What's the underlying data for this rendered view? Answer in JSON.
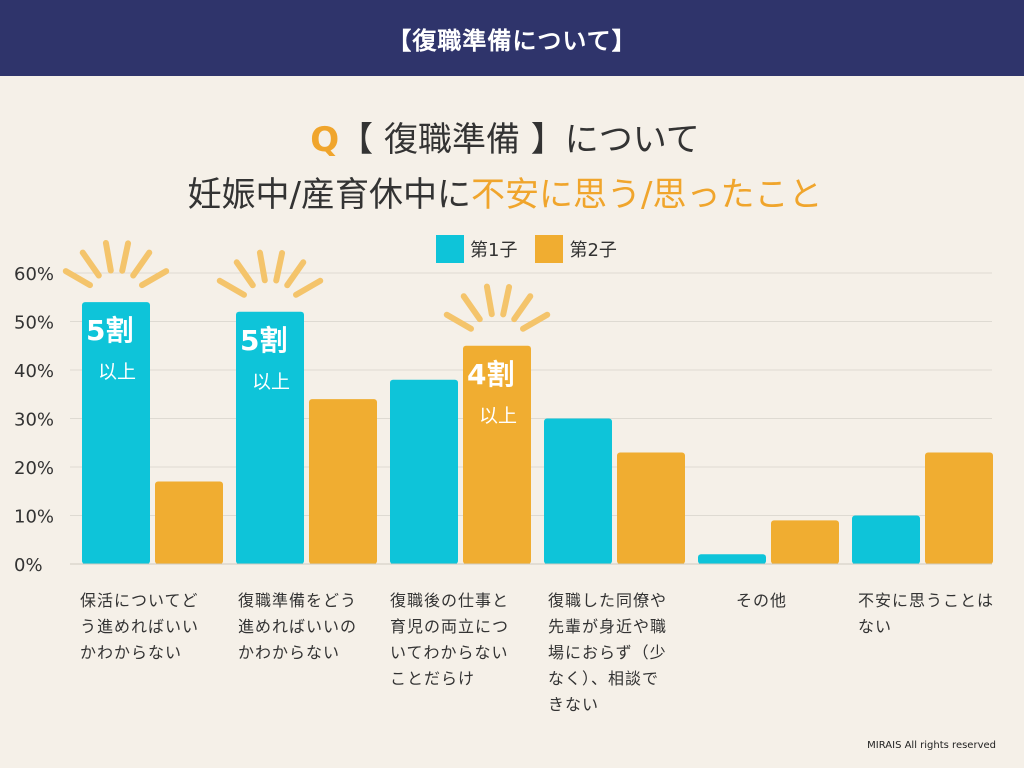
{
  "header": {
    "title": "【復職準備について】"
  },
  "question": {
    "mark": "Q",
    "line1": "【 復職準備 】について",
    "line2_prefix": "妊娠中/産育休中に",
    "line2_highlight": "不安に思う/思ったこと"
  },
  "colors": {
    "first": "#0ec4d9",
    "second": "#f0ad31",
    "header_bg": "#2f346b",
    "accent": "#f0a52c"
  },
  "chart_data": {
    "type": "bar",
    "categories": [
      "保活についてどう進めればいいかわからない",
      "復職準備をどう進めればいいのかわからない",
      "復職後の仕事と育児の両立についてわからないことだらけ",
      "復職した同僚や先輩が身近や職場におらず（少なく）、相談できない",
      "その他",
      "不安に思うことはない"
    ],
    "category_lines": [
      [
        "保活についてど",
        "う進めればいい",
        "かわからない"
      ],
      [
        "復職準備をどう",
        "進めればいいの",
        "かわからない"
      ],
      [
        "復職後の仕事と",
        "育児の両立につ",
        "いてわからない",
        "ことだらけ"
      ],
      [
        "復職した同僚や",
        "先輩が身近や職",
        "場におらず（少",
        "なく）、相談で",
        "きない"
      ],
      [
        "その他"
      ],
      [
        "不安に思うことは",
        "ない"
      ]
    ],
    "series": [
      {
        "name": "第1子",
        "values": [
          54,
          52,
          38,
          30,
          2,
          10
        ]
      },
      {
        "name": "第2子",
        "values": [
          17,
          34,
          45,
          23,
          9,
          23
        ]
      }
    ],
    "ylim": [
      0,
      60
    ],
    "yticks": [
      "0%",
      "10%",
      "20%",
      "30%",
      "40%",
      "50%",
      "60%"
    ],
    "grid": true,
    "legend": "top-center",
    "annotations": [
      {
        "series": 0,
        "category": 0,
        "big": "5割",
        "small": "以上"
      },
      {
        "series": 0,
        "category": 1,
        "big": "5割",
        "small": "以上"
      },
      {
        "series": 1,
        "category": 2,
        "big": "4割",
        "small": "以上"
      }
    ]
  },
  "footer": {
    "text": "MIRAIS All rights reserved"
  }
}
